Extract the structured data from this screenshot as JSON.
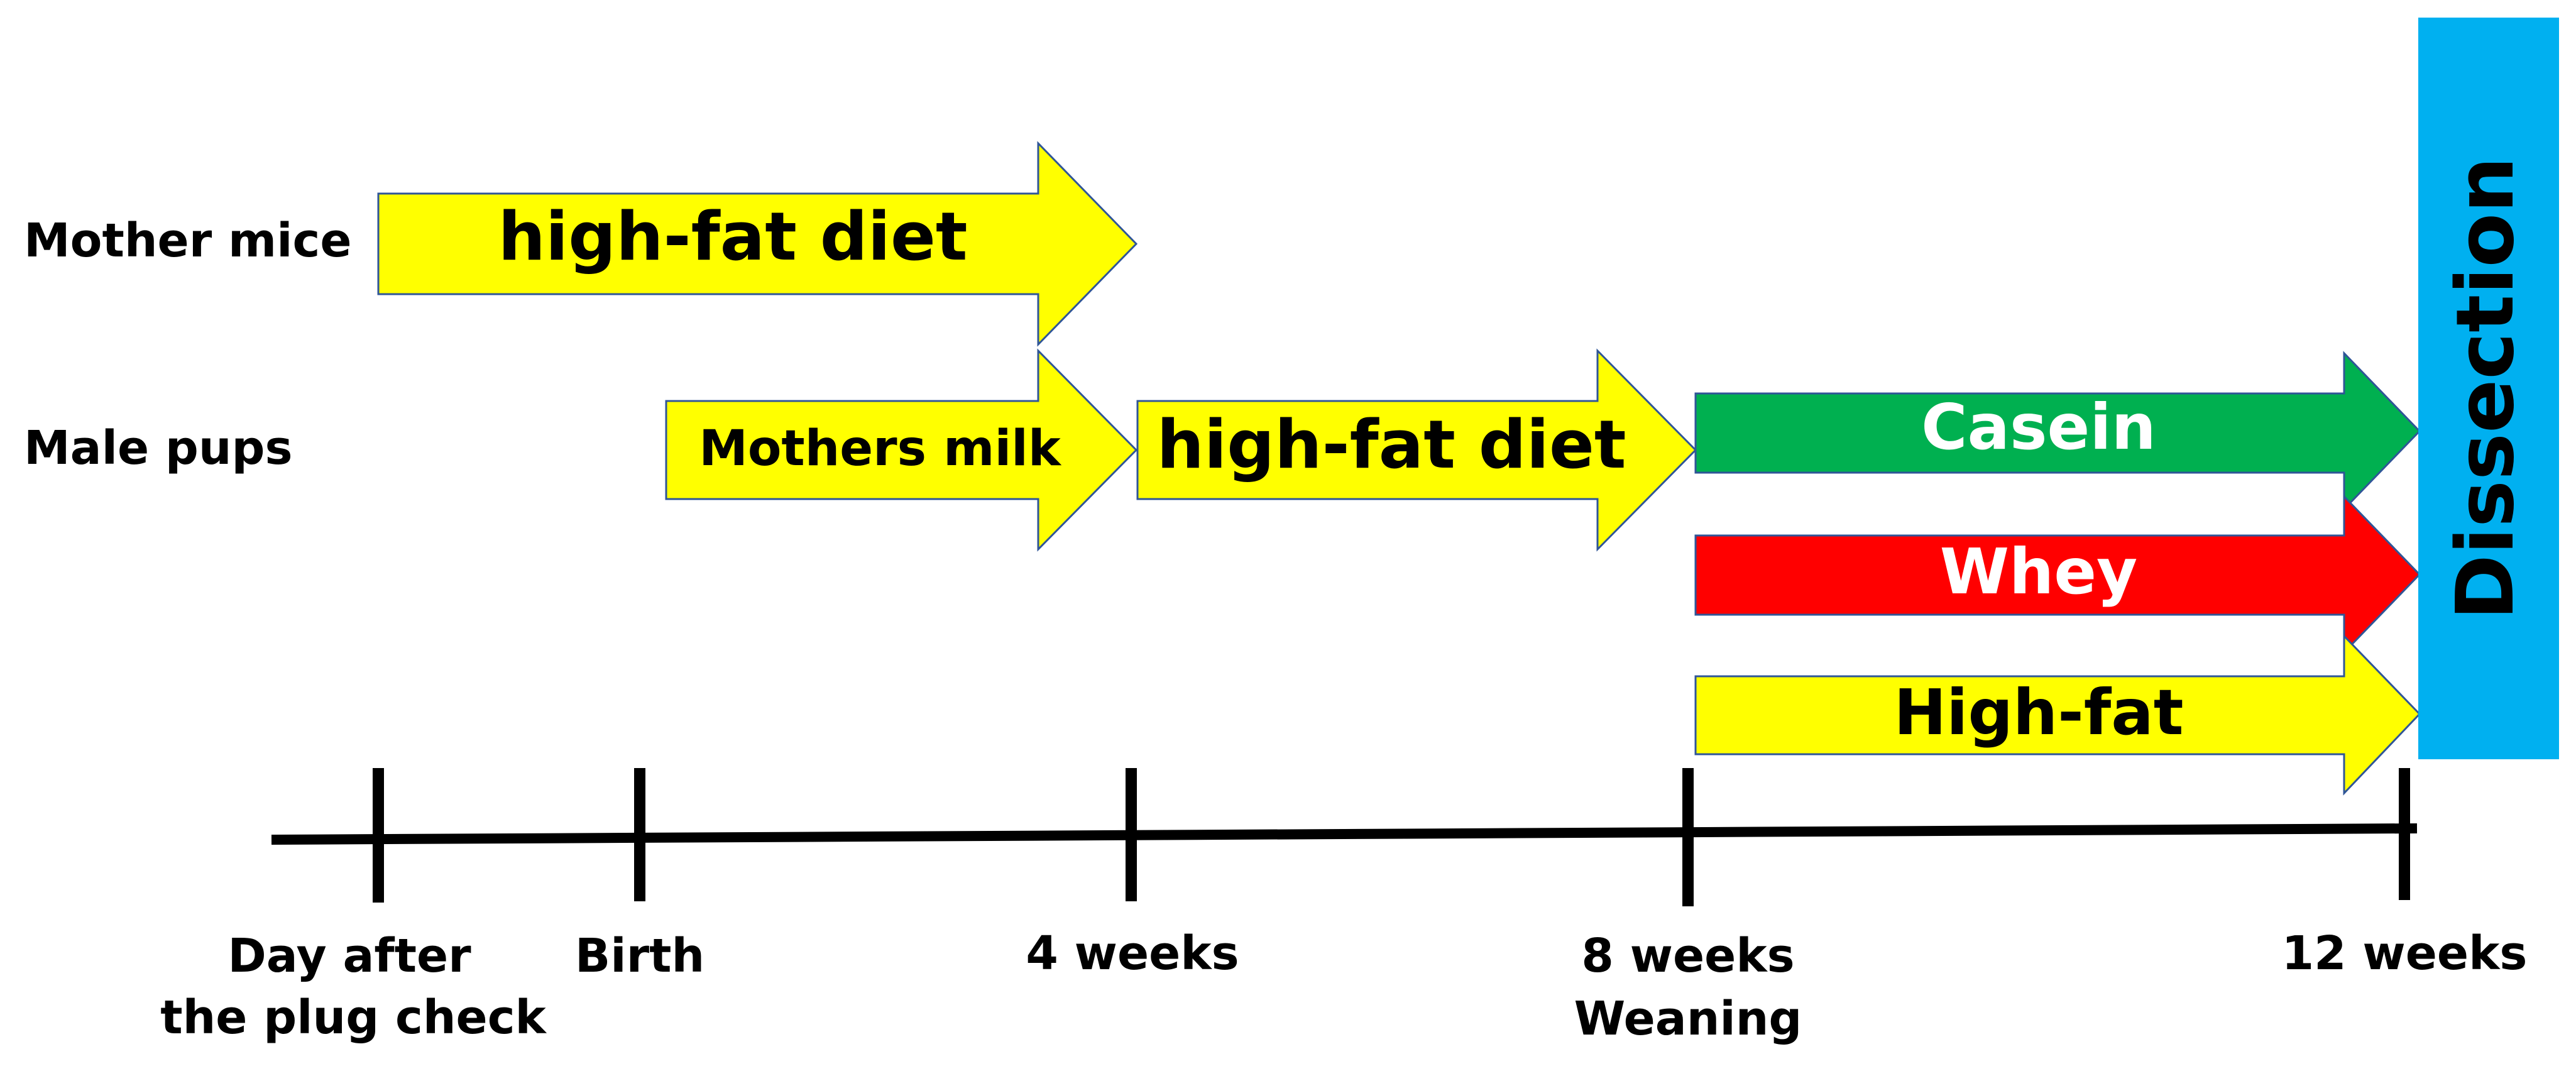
{
  "rows": {
    "mother": "Mother mice",
    "pups": "Male pups"
  },
  "arrows": {
    "mother_diet": {
      "label": "high-fat diet",
      "fill": "#FFFF00",
      "text_color": "#000000"
    },
    "mothers_milk": {
      "label": "Mothers milk",
      "fill": "#FFFF00",
      "text_color": "#000000"
    },
    "pup_diet": {
      "label": "high-fat diet",
      "fill": "#FFFF00",
      "text_color": "#000000"
    },
    "casein": {
      "label": "Casein",
      "fill": "#00B050",
      "text_color": "#FFFFFF"
    },
    "whey": {
      "label": "Whey",
      "fill": "#FF0000",
      "text_color": "#FFFFFF"
    },
    "high_fat": {
      "label": "High-fat",
      "fill": "#FFFF00",
      "text_color": "#000000"
    }
  },
  "dissection": {
    "label": "Dissection",
    "fill": "#00B0F0",
    "text_color": "#000000"
  },
  "timeline": {
    "ticks": [
      {
        "line1": "Day after",
        "line2": "the plug check"
      },
      {
        "line1": "Birth",
        "line2": ""
      },
      {
        "line1": "4 weeks",
        "line2": ""
      },
      {
        "line1": "8 weeks",
        "line2": "Weaning"
      },
      {
        "line1": "12 weeks",
        "line2": ""
      }
    ]
  }
}
